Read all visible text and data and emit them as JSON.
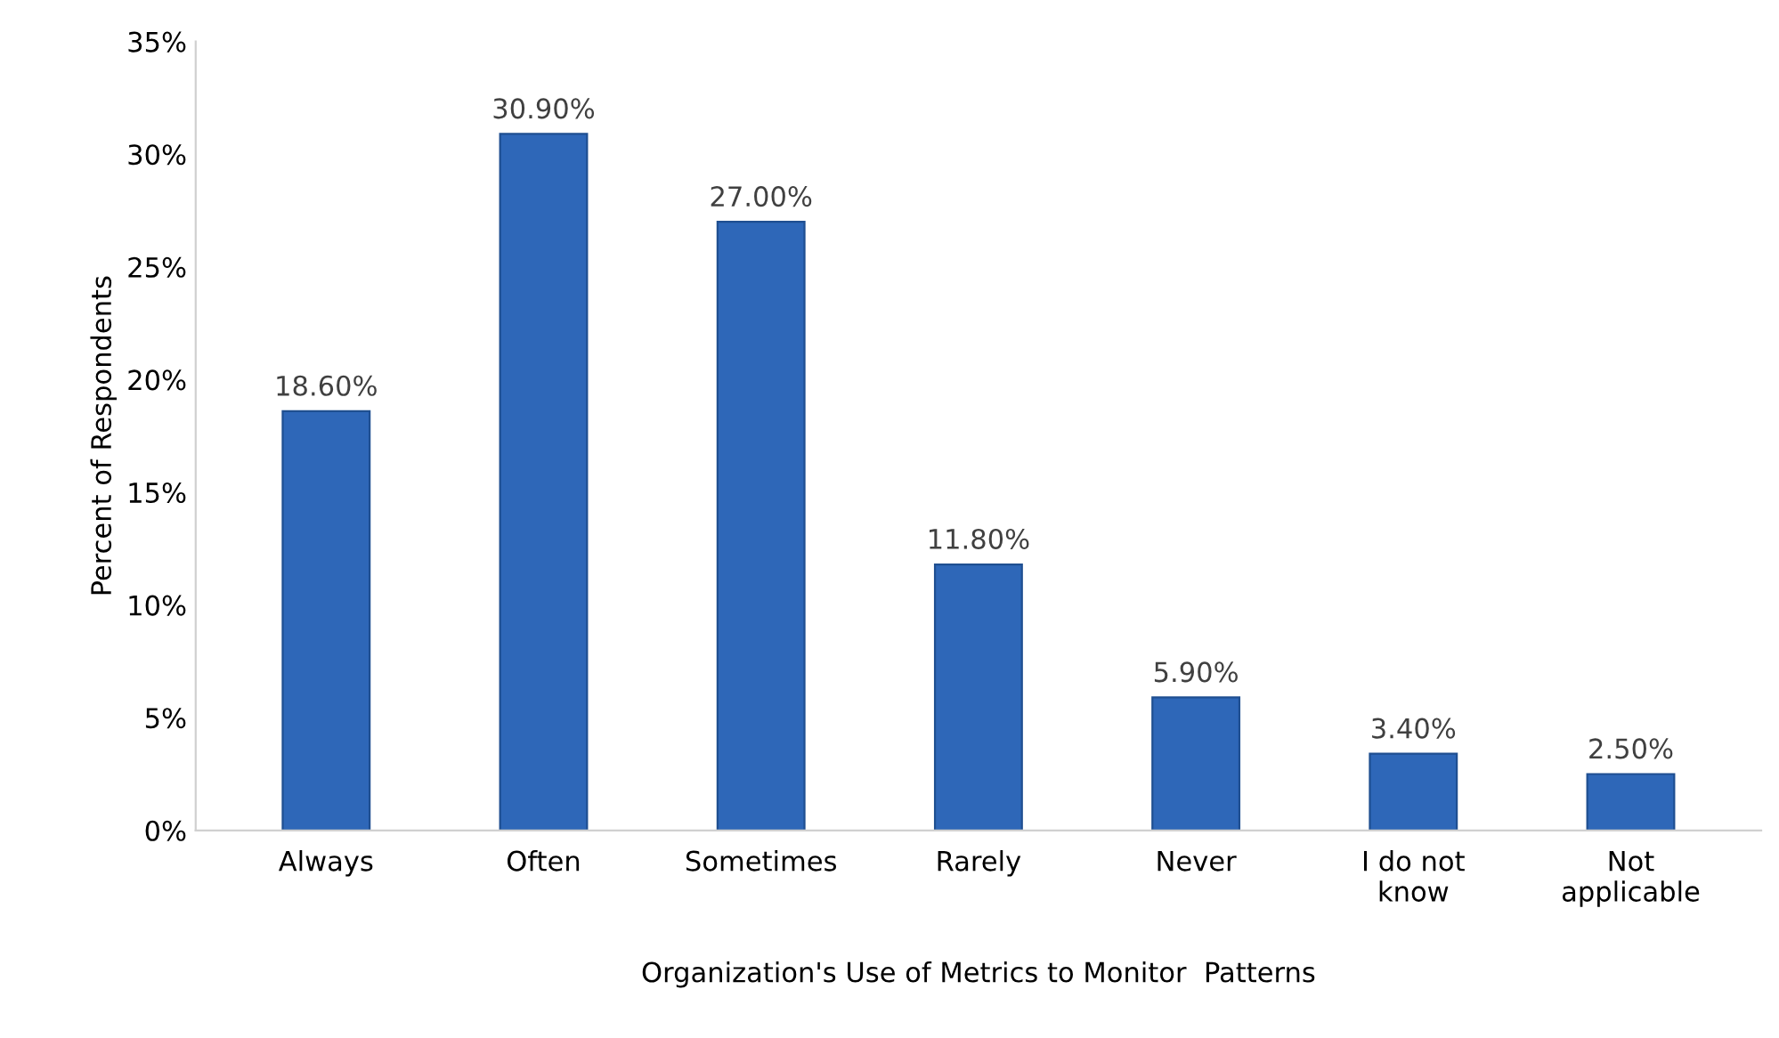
{
  "chart_data": {
    "type": "bar",
    "xlabel": "Organization's Use of Metrics to Monitor  Patterns",
    "ylabel": "Percent of Respondents",
    "categories": [
      "Always",
      "Often",
      "Sometimes",
      "Rarely",
      "Never",
      "I do not\nknow",
      "Not\napplicable"
    ],
    "values": [
      18.6,
      30.9,
      27.0,
      11.8,
      5.9,
      3.4,
      2.5
    ],
    "value_labels": [
      "18.60%",
      "30.90%",
      "27.00%",
      "11.80%",
      "5.90%",
      "3.40%",
      "2.50%"
    ],
    "color": "#2e67b8",
    "ylim": [
      0,
      35
    ],
    "yticks": [
      {
        "value": 0,
        "label": "0%"
      },
      {
        "value": 5,
        "label": "5%"
      },
      {
        "value": 10,
        "label": "10%"
      },
      {
        "value": 15,
        "label": "15%"
      },
      {
        "value": 20,
        "label": "20%"
      },
      {
        "value": 25,
        "label": "25%"
      },
      {
        "value": 30,
        "label": "30%"
      },
      {
        "value": 35,
        "label": "35%"
      }
    ],
    "grid": false,
    "legend": false
  }
}
